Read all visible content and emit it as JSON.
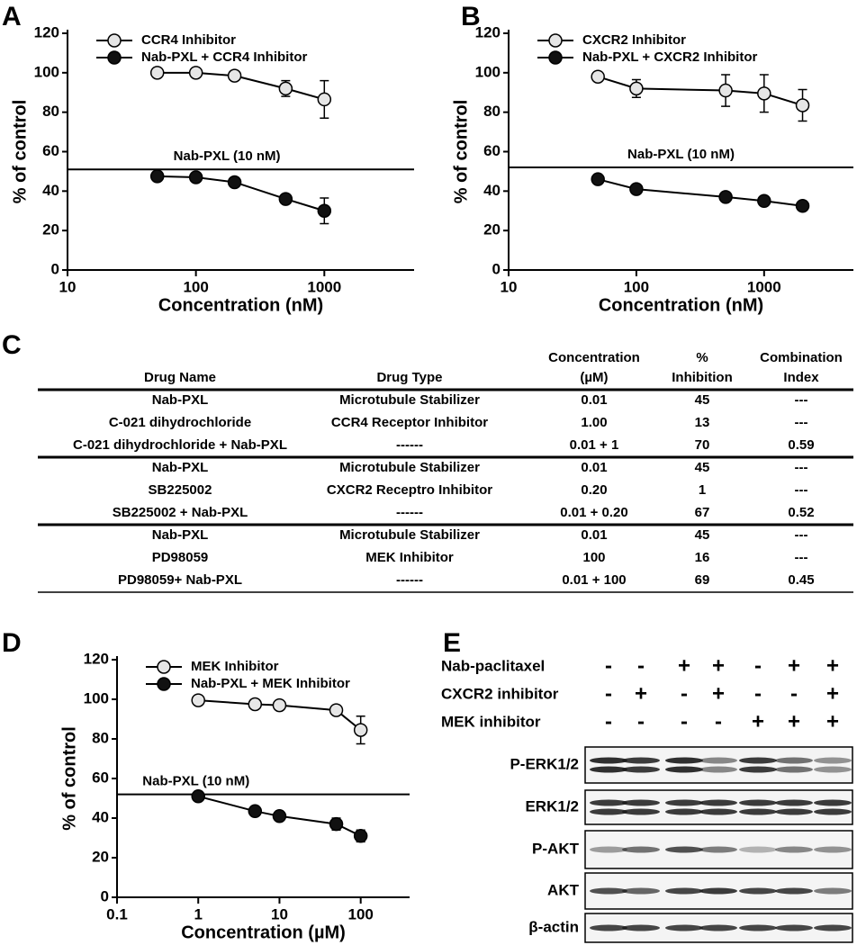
{
  "chart_data": [
    {
      "type": "line",
      "panel": "A",
      "xlabel": "Concentration (nM)",
      "ylabel": "% of control",
      "log_x": true,
      "xlim": [
        10,
        5000
      ],
      "xticks": [
        10,
        100,
        1000
      ],
      "ylim": [
        0,
        120
      ],
      "yticks": [
        0,
        20,
        40,
        60,
        80,
        100,
        120
      ],
      "legend": "upper left",
      "reference_line": {
        "value": 51,
        "label": "Nab-PXL (10 nM)"
      },
      "x": [
        50,
        100,
        200,
        500,
        1000
      ],
      "series": [
        {
          "name": "CCR4 Inhibitor",
          "color": "#e6e6e6",
          "values": [
            100,
            100,
            98.5,
            92,
            86.5
          ],
          "errors": [
            null,
            null,
            null,
            4,
            9.5
          ]
        },
        {
          "name": "Nab-PXL + CCR4 Inhibitor",
          "color": "#111111",
          "values": [
            47.5,
            47,
            44.5,
            36,
            30
          ],
          "errors": [
            null,
            null,
            null,
            null,
            6.5
          ]
        }
      ]
    },
    {
      "type": "line",
      "panel": "B",
      "xlabel": "Concentration (nM)",
      "ylabel": "% of control",
      "log_x": true,
      "xlim": [
        10,
        5000
      ],
      "xticks": [
        10,
        100,
        1000
      ],
      "ylim": [
        0,
        120
      ],
      "yticks": [
        0,
        20,
        40,
        60,
        80,
        100,
        120
      ],
      "legend": "upper left",
      "reference_line": {
        "value": 52,
        "label": "Nab-PXL (10 nM)"
      },
      "x": [
        50,
        100,
        500,
        1000,
        2000
      ],
      "series": [
        {
          "name": "CXCR2 Inhibitor",
          "color": "#e6e6e6",
          "values": [
            98,
            92,
            91,
            89.5,
            83.5
          ],
          "errors": [
            null,
            4.5,
            8,
            9.5,
            8
          ]
        },
        {
          "name": "Nab-PXL + CXCR2 Inhibitor",
          "color": "#111111",
          "values": [
            46,
            41,
            37,
            35,
            32.5
          ],
          "errors": [
            null,
            null,
            null,
            null,
            null
          ]
        }
      ]
    },
    {
      "type": "line",
      "panel": "D",
      "xlabel": "Concentration (µM)",
      "ylabel": "% of control",
      "log_x": true,
      "xlim": [
        0.1,
        400
      ],
      "xticks": [
        0.1,
        1,
        10,
        100
      ],
      "ylim": [
        0,
        120
      ],
      "yticks": [
        0,
        20,
        40,
        60,
        80,
        100,
        120
      ],
      "legend": "upper left",
      "reference_line": {
        "value": 52,
        "label": "Nab-PXL (10 nM)"
      },
      "x": [
        1,
        5,
        10,
        50,
        100
      ],
      "series": [
        {
          "name": "MEK Inhibitor",
          "color": "#e6e6e6",
          "values": [
            99.5,
            97.5,
            97,
            94.5,
            84.5
          ],
          "errors": [
            null,
            null,
            null,
            2,
            7
          ]
        },
        {
          "name": "Nab-PXL + MEK Inhibitor",
          "color": "#111111",
          "values": [
            51,
            43.5,
            41,
            37,
            31
          ],
          "errors": [
            null,
            null,
            null,
            3,
            3
          ]
        }
      ]
    }
  ],
  "table": {
    "panel": "C",
    "columns": [
      [
        "Drug Name"
      ],
      [
        "Drug Type"
      ],
      [
        "Concentration",
        "(µM)"
      ],
      [
        "%",
        "Inhibition"
      ],
      [
        "Combination",
        "Index"
      ]
    ],
    "groups": [
      [
        [
          "Nab-PXL",
          "Microtubule Stabilizer",
          "0.01",
          "45",
          "---"
        ],
        [
          "C-021 dihydrochloride",
          "CCR4 Receptor Inhibitor",
          "1.00",
          "13",
          "---"
        ],
        [
          "C-021 dihydrochloride + Nab-PXL",
          "------",
          "0.01 + 1",
          "70",
          "0.59"
        ]
      ],
      [
        [
          "Nab-PXL",
          "Microtubule Stabilizer",
          "0.01",
          "45",
          "---"
        ],
        [
          "SB225002",
          "CXCR2 Receptro Inhibitor",
          "0.20",
          "1",
          "---"
        ],
        [
          "SB225002 + Nab-PXL",
          "------",
          "0.01 + 0.20",
          "67",
          "0.52"
        ]
      ],
      [
        [
          "Nab-PXL",
          "Microtubule Stabilizer",
          "0.01",
          "45",
          "---"
        ],
        [
          "PD98059",
          "MEK Inhibitor",
          "100",
          "16",
          "---"
        ],
        [
          "PD98059+ Nab-PXL",
          "------",
          "0.01 + 100",
          "69",
          "0.45"
        ]
      ]
    ]
  },
  "blot": {
    "panel": "E",
    "conditions": [
      {
        "label": "Nab-paclitaxel",
        "signs": [
          "-",
          "-",
          "+",
          "+",
          "-",
          "+",
          "+"
        ]
      },
      {
        "label": "CXCR2 inhibitor",
        "signs": [
          "-",
          "+",
          "-",
          "+",
          "-",
          "-",
          "+"
        ]
      },
      {
        "label": "MEK inhibitor",
        "signs": [
          "-",
          "-",
          "-",
          "-",
          "+",
          "+",
          "+"
        ]
      }
    ],
    "bands": [
      "P-ERK1/2",
      "ERK1/2",
      "P-AKT",
      "AKT",
      "β-actin"
    ]
  }
}
